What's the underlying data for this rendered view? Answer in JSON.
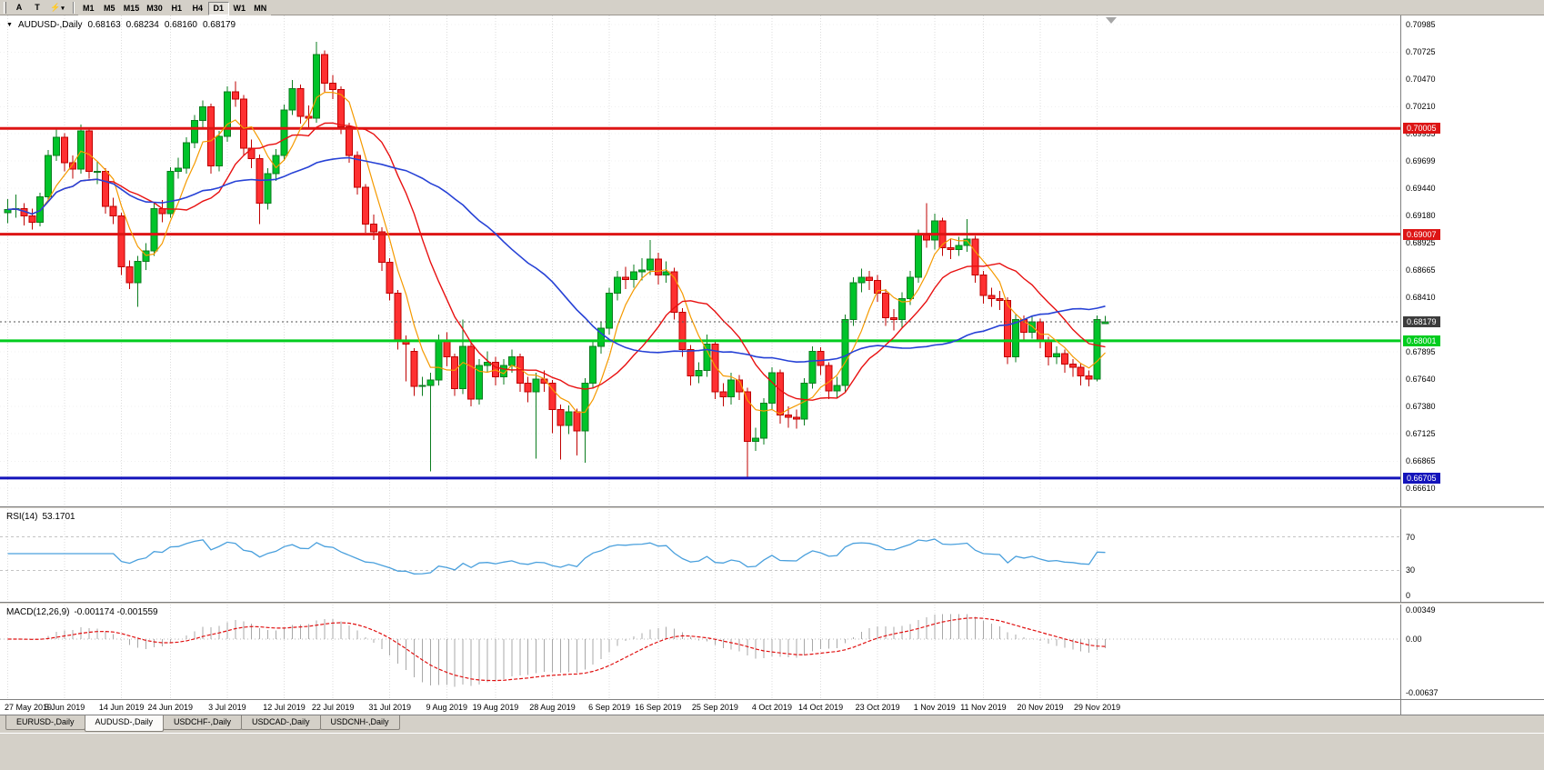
{
  "toolbar": {
    "char_buttons": [
      "A",
      "T"
    ],
    "timeframes": [
      "M1",
      "M5",
      "M15",
      "M30",
      "H1",
      "H4",
      "D1",
      "W1",
      "MN"
    ],
    "active_timeframe": "D1"
  },
  "chart_header": {
    "symbol": "AUDUSD-,Daily",
    "open": "0.68163",
    "high": "0.68234",
    "low": "0.68160",
    "close": "0.68179"
  },
  "chart_data": {
    "type": "candlestick",
    "symbol": "AUDUSD",
    "period": "Daily",
    "y_ticks": [
      "0.70985",
      "0.70725",
      "0.70470",
      "0.70210",
      "0.69955",
      "0.69699",
      "0.69440",
      "0.69180",
      "0.68925",
      "0.68665",
      "0.68410",
      "0.68150",
      "0.67895",
      "0.67640",
      "0.67380",
      "0.67125",
      "0.66865",
      "0.66610"
    ],
    "x_labels": [
      {
        "text": "27 May 2019",
        "i": 0
      },
      {
        "text": "5 Jun 2019",
        "i": 7
      },
      {
        "text": "14 Jun 2019",
        "i": 14
      },
      {
        "text": "24 Jun 2019",
        "i": 20
      },
      {
        "text": "3 Jul 2019",
        "i": 27
      },
      {
        "text": "12 Jul 2019",
        "i": 34
      },
      {
        "text": "22 Jul 2019",
        "i": 40
      },
      {
        "text": "31 Jul 2019",
        "i": 47
      },
      {
        "text": "9 Aug 2019",
        "i": 54
      },
      {
        "text": "19 Aug 2019",
        "i": 60
      },
      {
        "text": "28 Aug 2019",
        "i": 67
      },
      {
        "text": "6 Sep 2019",
        "i": 74
      },
      {
        "text": "16 Sep 2019",
        "i": 80
      },
      {
        "text": "25 Sep 2019",
        "i": 87
      },
      {
        "text": "4 Oct 2019",
        "i": 94
      },
      {
        "text": "14 Oct 2019",
        "i": 100
      },
      {
        "text": "23 Oct 2019",
        "i": 107
      },
      {
        "text": "1 Nov 2019",
        "i": 114
      },
      {
        "text": "11 Nov 2019",
        "i": 120
      },
      {
        "text": "20 Nov 2019",
        "i": 127
      },
      {
        "text": "29 Nov 2019",
        "i": 134
      }
    ],
    "h_lines": [
      {
        "price": 0.70005,
        "label": "0.70005",
        "color": "#dd1515"
      },
      {
        "price": 0.69007,
        "label": "0.69007",
        "color": "#dd1515"
      },
      {
        "price": 0.68001,
        "label": "0.68001",
        "color": "#00cc1e"
      },
      {
        "price": 0.66705,
        "label": "0.66705",
        "color": "#1414bb"
      }
    ],
    "current_price": {
      "value": 0.68179,
      "label": "0.68179",
      "badge_color": "#3c3c3c"
    },
    "colors": {
      "up": "#00c42a",
      "up_border": "#0b7d1f",
      "down": "#fe3031",
      "down_border": "#bf0000",
      "grid": "#dcdcdc"
    },
    "moving_averages": [
      {
        "name": "MA-fast",
        "period": 5,
        "color": "#f59a00",
        "width": 1.2
      },
      {
        "name": "MA-mid",
        "period": 13,
        "color": "#e81010",
        "width": 1.4
      },
      {
        "name": "MA-slow",
        "period": 34,
        "color": "#2742d6",
        "width": 1.6
      }
    ],
    "candles": [
      [
        0.6921,
        0.6934,
        0.6911,
        0.6924
      ],
      [
        0.6924,
        0.6938,
        0.6916,
        0.6925
      ],
      [
        0.6925,
        0.693,
        0.6909,
        0.6918
      ],
      [
        0.6918,
        0.6925,
        0.6905,
        0.6912
      ],
      [
        0.6912,
        0.694,
        0.6908,
        0.6936
      ],
      [
        0.6936,
        0.698,
        0.6932,
        0.6975
      ],
      [
        0.6975,
        0.7,
        0.697,
        0.6992
      ],
      [
        0.6992,
        0.6996,
        0.696,
        0.6968
      ],
      [
        0.6968,
        0.6975,
        0.6953,
        0.6962
      ],
      [
        0.6962,
        0.7004,
        0.6958,
        0.6998
      ],
      [
        0.6998,
        0.7,
        0.6953,
        0.696
      ],
      [
        0.696,
        0.697,
        0.6948,
        0.696
      ],
      [
        0.696,
        0.6963,
        0.692,
        0.6927
      ],
      [
        0.6927,
        0.6935,
        0.691,
        0.6918
      ],
      [
        0.6918,
        0.6921,
        0.6862,
        0.687
      ],
      [
        0.687,
        0.6876,
        0.6849,
        0.6855
      ],
      [
        0.6855,
        0.688,
        0.6832,
        0.6875
      ],
      [
        0.6875,
        0.6892,
        0.6867,
        0.6885
      ],
      [
        0.6885,
        0.693,
        0.688,
        0.6925
      ],
      [
        0.6925,
        0.6933,
        0.6912,
        0.692
      ],
      [
        0.692,
        0.6964,
        0.6916,
        0.696
      ],
      [
        0.696,
        0.6973,
        0.6953,
        0.6963
      ],
      [
        0.6963,
        0.6992,
        0.6958,
        0.6987
      ],
      [
        0.6987,
        0.7013,
        0.6982,
        0.7008
      ],
      [
        0.7008,
        0.7027,
        0.7001,
        0.7021
      ],
      [
        0.7021,
        0.7024,
        0.6958,
        0.6965
      ],
      [
        0.6965,
        0.6998,
        0.696,
        0.6993
      ],
      [
        0.6993,
        0.704,
        0.6988,
        0.7035
      ],
      [
        0.7035,
        0.7045,
        0.7021,
        0.7028
      ],
      [
        0.7028,
        0.7032,
        0.6975,
        0.6982
      ],
      [
        0.6982,
        0.699,
        0.6963,
        0.6972
      ],
      [
        0.6972,
        0.6976,
        0.691,
        0.693
      ],
      [
        0.693,
        0.6963,
        0.6924,
        0.6958
      ],
      [
        0.6958,
        0.6981,
        0.6951,
        0.6975
      ],
      [
        0.6975,
        0.7023,
        0.697,
        0.7018
      ],
      [
        0.7018,
        0.7046,
        0.7013,
        0.7038
      ],
      [
        0.7038,
        0.7042,
        0.7005,
        0.7012
      ],
      [
        0.7012,
        0.7022,
        0.7001,
        0.701
      ],
      [
        0.701,
        0.7082,
        0.7006,
        0.707
      ],
      [
        0.707,
        0.7074,
        0.7035,
        0.7043
      ],
      [
        0.7043,
        0.7051,
        0.7028,
        0.7037
      ],
      [
        0.7037,
        0.704,
        0.6995,
        0.7002
      ],
      [
        0.7002,
        0.7006,
        0.6968,
        0.6975
      ],
      [
        0.6975,
        0.6979,
        0.6938,
        0.6945
      ],
      [
        0.6945,
        0.6948,
        0.6902,
        0.691
      ],
      [
        0.691,
        0.6919,
        0.6895,
        0.6903
      ],
      [
        0.6903,
        0.6907,
        0.6866,
        0.6874
      ],
      [
        0.6874,
        0.6878,
        0.6838,
        0.6845
      ],
      [
        0.6845,
        0.6848,
        0.6792,
        0.68
      ],
      [
        0.68,
        0.6805,
        0.6762,
        0.6797
      ],
      [
        0.679,
        0.6793,
        0.6748,
        0.6757
      ],
      [
        0.6757,
        0.6766,
        0.6748,
        0.6758
      ],
      [
        0.6758,
        0.677,
        0.6677,
        0.6763
      ],
      [
        0.6763,
        0.6806,
        0.6758,
        0.68
      ],
      [
        0.68,
        0.6808,
        0.6776,
        0.6785
      ],
      [
        0.6785,
        0.6788,
        0.6748,
        0.6755
      ],
      [
        0.6755,
        0.682,
        0.675,
        0.6795
      ],
      [
        0.6795,
        0.6798,
        0.6738,
        0.6745
      ],
      [
        0.6745,
        0.6783,
        0.674,
        0.6777
      ],
      [
        0.6777,
        0.679,
        0.677,
        0.678
      ],
      [
        0.678,
        0.6785,
        0.6758,
        0.6766
      ],
      [
        0.6766,
        0.6783,
        0.6759,
        0.6777
      ],
      [
        0.6777,
        0.6792,
        0.677,
        0.6785
      ],
      [
        0.6785,
        0.6788,
        0.6752,
        0.676
      ],
      [
        0.676,
        0.6766,
        0.6742,
        0.6752
      ],
      [
        0.6752,
        0.677,
        0.6689,
        0.6764
      ],
      [
        0.6764,
        0.6772,
        0.6752,
        0.676
      ],
      [
        0.676,
        0.6763,
        0.6713,
        0.6735
      ],
      [
        0.6735,
        0.674,
        0.6688,
        0.672
      ],
      [
        0.672,
        0.6739,
        0.6712,
        0.6733
      ],
      [
        0.6733,
        0.6736,
        0.6692,
        0.6715
      ],
      [
        0.6715,
        0.6765,
        0.6685,
        0.676
      ],
      [
        0.676,
        0.68,
        0.6755,
        0.6795
      ],
      [
        0.6795,
        0.6818,
        0.6788,
        0.6812
      ],
      [
        0.6812,
        0.685,
        0.6806,
        0.6845
      ],
      [
        0.6845,
        0.6866,
        0.6838,
        0.686
      ],
      [
        0.686,
        0.687,
        0.6849,
        0.6858
      ],
      [
        0.6858,
        0.6872,
        0.685,
        0.6865
      ],
      [
        0.6865,
        0.6878,
        0.6857,
        0.6867
      ],
      [
        0.6867,
        0.6895,
        0.6862,
        0.6877
      ],
      [
        0.6877,
        0.6883,
        0.6853,
        0.6862
      ],
      [
        0.6862,
        0.6875,
        0.6855,
        0.6865
      ],
      [
        0.6865,
        0.6869,
        0.682,
        0.6827
      ],
      [
        0.6827,
        0.6831,
        0.6785,
        0.6792
      ],
      [
        0.6792,
        0.6796,
        0.6758,
        0.6767
      ],
      [
        0.6767,
        0.678,
        0.676,
        0.6772
      ],
      [
        0.6772,
        0.6806,
        0.6766,
        0.6797
      ],
      [
        0.6797,
        0.68,
        0.6745,
        0.6752
      ],
      [
        0.6752,
        0.676,
        0.6738,
        0.6747
      ],
      [
        0.6747,
        0.677,
        0.674,
        0.6763
      ],
      [
        0.6763,
        0.6768,
        0.6744,
        0.6752
      ],
      [
        0.6752,
        0.6756,
        0.667,
        0.6705
      ],
      [
        0.6705,
        0.6718,
        0.6696,
        0.6708
      ],
      [
        0.6708,
        0.6746,
        0.6702,
        0.6741
      ],
      [
        0.6741,
        0.6775,
        0.6735,
        0.677
      ],
      [
        0.677,
        0.6773,
        0.6722,
        0.673
      ],
      [
        0.673,
        0.6738,
        0.6718,
        0.6728
      ],
      [
        0.6728,
        0.6735,
        0.6717,
        0.6726
      ],
      [
        0.6726,
        0.6765,
        0.672,
        0.676
      ],
      [
        0.676,
        0.6795,
        0.6755,
        0.679
      ],
      [
        0.679,
        0.6794,
        0.6768,
        0.6777
      ],
      [
        0.6777,
        0.678,
        0.6745,
        0.6753
      ],
      [
        0.6753,
        0.6766,
        0.6746,
        0.6758
      ],
      [
        0.6758,
        0.6825,
        0.6752,
        0.682
      ],
      [
        0.682,
        0.686,
        0.6814,
        0.6855
      ],
      [
        0.6855,
        0.6868,
        0.6846,
        0.686
      ],
      [
        0.686,
        0.6866,
        0.6848,
        0.6857
      ],
      [
        0.6857,
        0.6862,
        0.6837,
        0.6845
      ],
      [
        0.6845,
        0.6849,
        0.6814,
        0.6822
      ],
      [
        0.6822,
        0.683,
        0.681,
        0.682
      ],
      [
        0.682,
        0.6846,
        0.6812,
        0.684
      ],
      [
        0.684,
        0.6866,
        0.6834,
        0.686
      ],
      [
        0.686,
        0.6905,
        0.6855,
        0.69
      ],
      [
        0.69,
        0.693,
        0.6888,
        0.6895
      ],
      [
        0.6895,
        0.692,
        0.6886,
        0.6913
      ],
      [
        0.6913,
        0.6916,
        0.688,
        0.6888
      ],
      [
        0.6888,
        0.6896,
        0.6877,
        0.6886
      ],
      [
        0.6886,
        0.6898,
        0.688,
        0.689
      ],
      [
        0.689,
        0.6915,
        0.6884,
        0.6896
      ],
      [
        0.6896,
        0.6899,
        0.6855,
        0.6862
      ],
      [
        0.6862,
        0.6866,
        0.6835,
        0.6843
      ],
      [
        0.6843,
        0.685,
        0.6832,
        0.684
      ],
      [
        0.684,
        0.6847,
        0.6829,
        0.6838
      ],
      [
        0.6838,
        0.6841,
        0.6778,
        0.6785
      ],
      [
        0.6785,
        0.6825,
        0.678,
        0.682
      ],
      [
        0.682,
        0.6824,
        0.68,
        0.6808
      ],
      [
        0.6808,
        0.6824,
        0.6802,
        0.6818
      ],
      [
        0.6818,
        0.6821,
        0.6793,
        0.68
      ],
      [
        0.68,
        0.6804,
        0.6777,
        0.6785
      ],
      [
        0.6785,
        0.6795,
        0.6778,
        0.6788
      ],
      [
        0.6788,
        0.6792,
        0.677,
        0.6778
      ],
      [
        0.6778,
        0.6783,
        0.6766,
        0.6775
      ],
      [
        0.6775,
        0.6779,
        0.6758,
        0.6767
      ],
      [
        0.6767,
        0.6772,
        0.6757,
        0.6764
      ],
      [
        0.6764,
        0.6824,
        0.6762,
        0.682
      ],
      [
        0.68163,
        0.68234,
        0.6816,
        0.68179
      ]
    ]
  },
  "rsi_panel": {
    "label": "RSI(14)",
    "value": "53.1701",
    "line_color": "#4aa0dd",
    "levels": [
      "70",
      "30",
      "0"
    ]
  },
  "macd_panel": {
    "label": "MACD(12,26,9)",
    "values": "-0.001174 -0.001559",
    "scale": [
      "0.00349",
      "0.00",
      "-0.00637"
    ],
    "bar_color": "#a8a8a8",
    "signal_color": "#e01010"
  },
  "tabs": {
    "items": [
      "EURUSD-,Daily",
      "AUDUSD-,Daily",
      "USDCHF-,Daily",
      "USDCAD-,Daily",
      "USDCNH-,Daily"
    ],
    "active": "AUDUSD-,Daily"
  }
}
